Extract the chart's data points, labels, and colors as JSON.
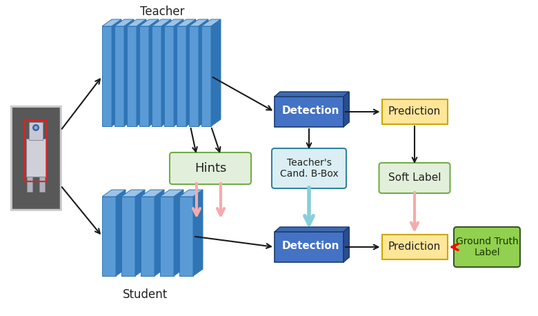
{
  "bg_color": "#ffffff",
  "teacher_label": "Teacher",
  "student_label": "Student",
  "hints_label": "Hints",
  "teachers_cand_label": "Teacher's\nCand. B-Box",
  "detection_label": "Detection",
  "prediction_label": "Prediction",
  "soft_label_label": "Soft Label",
  "ground_truth_label": "Ground Truth\nLabel",
  "detection_color": "#4472C4",
  "detection_top_color": "#2E5DA6",
  "detection_text_color": "#ffffff",
  "prediction_color": "#FFE699",
  "prediction_border": "#C9A800",
  "hints_color": "#E2EFDA",
  "hints_border_color": "#70AD47",
  "soft_label_color": "#E2EFDA",
  "soft_label_border_color": "#70AD47",
  "teachers_cand_color": "#DAEEF3",
  "teachers_cand_border_color": "#31849B",
  "ground_truth_color": "#92D050",
  "ground_truth_border_color": "#375623",
  "cnn_face_color": "#5B9BD5",
  "cnn_top_color": "#9DC3E6",
  "cnn_right_color": "#2F75B6",
  "cnn_edge_color": "#2E75B6",
  "arrow_black": "#1a1a1a",
  "arrow_pink": "#F4ABAB",
  "arrow_cyan": "#87CEDB",
  "arrow_red": "#FF0000",
  "img_bg": "#6a6a6a",
  "img_border": "#bbbbbb",
  "robot_body": "#c0c0c0",
  "robot_dark": "#555577"
}
